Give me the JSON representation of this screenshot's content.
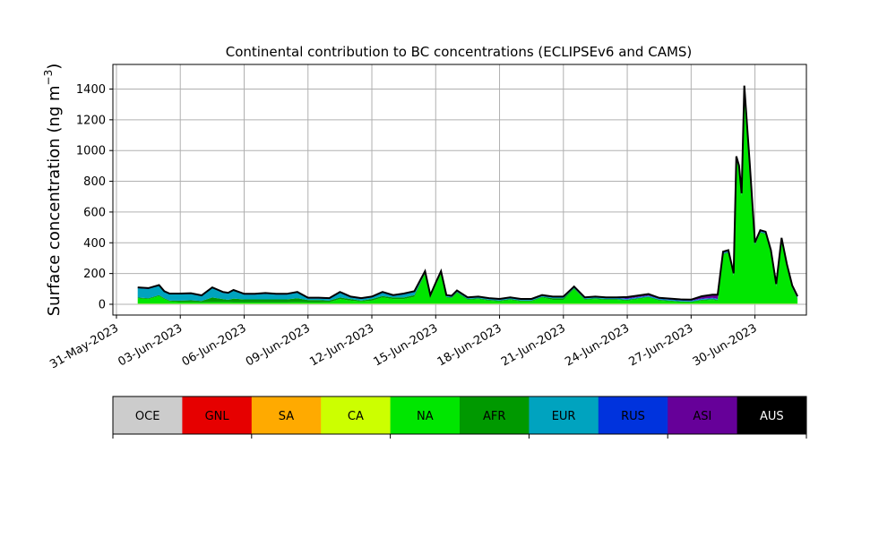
{
  "chart_data": {
    "type": "area",
    "title": "Continental contribution to BC concentrations (ECLIPSEv6 and CAMS)",
    "ylabel": "Surface concentration (ng m",
    "ylabel_sup": "−3",
    "ylabel_close": ")",
    "xlabel": "",
    "xlim": [
      "2023-05-30T20:00",
      "2023-07-02T10:00"
    ],
    "ylim": [
      -70,
      1560
    ],
    "yticks": [
      0,
      200,
      400,
      600,
      800,
      1000,
      1200,
      1400
    ],
    "xticks": [
      "2023-05-31",
      "2023-06-03",
      "2023-06-06",
      "2023-06-09",
      "2023-06-12",
      "2023-06-15",
      "2023-06-18",
      "2023-06-21",
      "2023-06-24",
      "2023-06-27",
      "2023-06-30"
    ],
    "xtick_labels": [
      "31-May-2023",
      "03-Jun-2023",
      "06-Jun-2023",
      "09-Jun-2023",
      "12-Jun-2023",
      "15-Jun-2023",
      "18-Jun-2023",
      "21-Jun-2023",
      "24-Jun-2023",
      "27-Jun-2023",
      "30-Jun-2023"
    ],
    "grid": true,
    "stacked": true,
    "x": [
      "2023-06-01T00:00",
      "2023-06-01T12:00",
      "2023-06-02T00:00",
      "2023-06-02T06:00",
      "2023-06-02T12:00",
      "2023-06-03T00:00",
      "2023-06-03T12:00",
      "2023-06-04T00:00",
      "2023-06-04T12:00",
      "2023-06-05T00:00",
      "2023-06-05T06:00",
      "2023-06-05T12:00",
      "2023-06-06T00:00",
      "2023-06-06T12:00",
      "2023-06-07T00:00",
      "2023-06-07T12:00",
      "2023-06-08T00:00",
      "2023-06-08T12:00",
      "2023-06-09T00:00",
      "2023-06-09T12:00",
      "2023-06-10T00:00",
      "2023-06-10T12:00",
      "2023-06-11T00:00",
      "2023-06-11T12:00",
      "2023-06-12T00:00",
      "2023-06-12T12:00",
      "2023-06-13T00:00",
      "2023-06-13T12:00",
      "2023-06-14T00:00",
      "2023-06-14T12:00",
      "2023-06-14T18:00",
      "2023-06-15T00:00",
      "2023-06-15T06:00",
      "2023-06-15T12:00",
      "2023-06-15T18:00",
      "2023-06-16T00:00",
      "2023-06-16T12:00",
      "2023-06-17T00:00",
      "2023-06-17T12:00",
      "2023-06-18T00:00",
      "2023-06-18T12:00",
      "2023-06-19T00:00",
      "2023-06-19T12:00",
      "2023-06-20T00:00",
      "2023-06-20T12:00",
      "2023-06-21T00:00",
      "2023-06-21T12:00",
      "2023-06-22T00:00",
      "2023-06-22T12:00",
      "2023-06-23T00:00",
      "2023-06-23T12:00",
      "2023-06-24T00:00",
      "2023-06-24T12:00",
      "2023-06-25T00:00",
      "2023-06-25T12:00",
      "2023-06-26T00:00",
      "2023-06-26T12:00",
      "2023-06-27T00:00",
      "2023-06-27T12:00",
      "2023-06-28T00:00",
      "2023-06-28T06:00",
      "2023-06-28T12:00",
      "2023-06-28T18:00",
      "2023-06-29T00:00",
      "2023-06-29T03:00",
      "2023-06-29T06:00",
      "2023-06-29T09:00",
      "2023-06-29T12:00",
      "2023-06-29T18:00",
      "2023-06-30T00:00",
      "2023-06-30T06:00",
      "2023-06-30T12:00",
      "2023-06-30T18:00",
      "2023-07-01T00:00",
      "2023-07-01T06:00",
      "2023-07-01T12:00",
      "2023-07-01T18:00",
      "2023-07-02T00:00"
    ],
    "series": [
      {
        "name": "OCE",
        "color": "#cccccc",
        "values": [
          2,
          2,
          2,
          2,
          2,
          2,
          2,
          2,
          2,
          2,
          2,
          2,
          2,
          2,
          2,
          2,
          2,
          2,
          2,
          2,
          2,
          2,
          2,
          2,
          2,
          2,
          2,
          2,
          2,
          2,
          2,
          2,
          2,
          2,
          2,
          2,
          2,
          2,
          2,
          2,
          2,
          2,
          2,
          2,
          2,
          2,
          2,
          2,
          2,
          2,
          2,
          2,
          2,
          2,
          2,
          2,
          2,
          2,
          2,
          2,
          2,
          2,
          2,
          2,
          2,
          2,
          2,
          2,
          2,
          2,
          2,
          2,
          2,
          2,
          2,
          2,
          2,
          2
        ]
      },
      {
        "name": "GNL",
        "color": "#e60000",
        "values": [
          0,
          0,
          0,
          0,
          0,
          0,
          0,
          0,
          0,
          0,
          0,
          0,
          0,
          0,
          0,
          0,
          0,
          0,
          0,
          0,
          0,
          0,
          0,
          0,
          0,
          0,
          0,
          0,
          0,
          0,
          0,
          0,
          0,
          0,
          0,
          0,
          0,
          0,
          0,
          0,
          0,
          0,
          0,
          0,
          0,
          0,
          0,
          0,
          0,
          0,
          0,
          0,
          0,
          0,
          0,
          0,
          0,
          0,
          0,
          0,
          0,
          0,
          0,
          0,
          0,
          0,
          0,
          0,
          0,
          0,
          0,
          0,
          0,
          0,
          0,
          0,
          0,
          0
        ]
      },
      {
        "name": "SA",
        "color": "#ffaa00",
        "values": [
          0,
          0,
          0,
          0,
          0,
          0,
          0,
          0,
          0,
          0,
          0,
          0,
          0,
          0,
          0,
          0,
          0,
          0,
          0,
          0,
          0,
          0,
          0,
          0,
          0,
          0,
          0,
          0,
          0,
          0,
          0,
          0,
          0,
          0,
          0,
          0,
          0,
          0,
          0,
          0,
          0,
          0,
          0,
          0,
          0,
          0,
          0,
          0,
          0,
          0,
          0,
          0,
          0,
          0,
          0,
          0,
          0,
          0,
          0,
          0,
          0,
          0,
          0,
          0,
          0,
          0,
          0,
          0,
          0,
          0,
          0,
          0,
          0,
          0,
          0,
          0,
          0,
          0
        ]
      },
      {
        "name": "CA",
        "color": "#ccff00",
        "values": [
          2,
          2,
          2,
          2,
          2,
          2,
          2,
          2,
          2,
          2,
          2,
          2,
          2,
          2,
          2,
          2,
          2,
          2,
          2,
          2,
          2,
          2,
          2,
          2,
          2,
          2,
          2,
          2,
          2,
          2,
          2,
          2,
          2,
          2,
          2,
          2,
          2,
          2,
          2,
          2,
          2,
          2,
          2,
          2,
          2,
          2,
          2,
          2,
          2,
          2,
          2,
          2,
          2,
          2,
          2,
          2,
          2,
          2,
          2,
          2,
          2,
          2,
          2,
          2,
          2,
          2,
          2,
          2,
          2,
          2,
          2,
          2,
          2,
          2,
          2,
          2,
          2,
          2
        ]
      },
      {
        "name": "NA",
        "color": "#00e600",
        "values": [
          35,
          30,
          50,
          30,
          15,
          10,
          10,
          8,
          10,
          10,
          10,
          8,
          8,
          8,
          8,
          8,
          8,
          10,
          8,
          8,
          10,
          30,
          20,
          15,
          20,
          40,
          30,
          30,
          45,
          195,
          40,
          120,
          195,
          40,
          35,
          70,
          25,
          30,
          20,
          15,
          25,
          15,
          15,
          40,
          25,
          25,
          95,
          25,
          30,
          25,
          25,
          20,
          30,
          40,
          20,
          15,
          10,
          8,
          20,
          25,
          20,
          320,
          330,
          180,
          940,
          880,
          700,
          1400,
          900,
          380,
          460,
          450,
          330,
          110,
          410,
          240,
          100,
          30
        ]
      },
      {
        "name": "AFR",
        "color": "#009900",
        "values": [
          5,
          5,
          5,
          5,
          5,
          10,
          12,
          10,
          30,
          20,
          15,
          25,
          20,
          20,
          20,
          20,
          20,
          25,
          15,
          15,
          10,
          10,
          10,
          5,
          10,
          10,
          10,
          10,
          10,
          5,
          5,
          5,
          5,
          5,
          5,
          5,
          5,
          5,
          5,
          5,
          5,
          5,
          5,
          5,
          10,
          10,
          5,
          5,
          5,
          5,
          5,
          5,
          5,
          5,
          5,
          5,
          5,
          5,
          5,
          5,
          5,
          5,
          5,
          5,
          5,
          5,
          5,
          5,
          5,
          5,
          5,
          5,
          5,
          5,
          5,
          5,
          5,
          5
        ]
      },
      {
        "name": "EUR",
        "color": "#00a3bf",
        "values": [
          60,
          60,
          60,
          40,
          40,
          40,
          40,
          30,
          60,
          40,
          40,
          50,
          30,
          30,
          35,
          30,
          30,
          35,
          10,
          10,
          10,
          30,
          10,
          10,
          10,
          20,
          10,
          20,
          20,
          5,
          5,
          5,
          5,
          5,
          5,
          5,
          5,
          5,
          5,
          5,
          5,
          5,
          5,
          5,
          5,
          5,
          5,
          5,
          5,
          5,
          5,
          5,
          5,
          5,
          5,
          5,
          5,
          5,
          5,
          5,
          5,
          5,
          5,
          5,
          5,
          5,
          5,
          5,
          5,
          5,
          5,
          5,
          5,
          5,
          5,
          5,
          5,
          5
        ]
      },
      {
        "name": "RUS",
        "color": "#0033dd",
        "values": [
          3,
          3,
          3,
          3,
          3,
          3,
          3,
          3,
          3,
          3,
          3,
          3,
          3,
          3,
          3,
          3,
          3,
          3,
          3,
          3,
          3,
          3,
          3,
          3,
          3,
          3,
          3,
          3,
          3,
          3,
          3,
          3,
          3,
          3,
          3,
          3,
          3,
          3,
          3,
          3,
          3,
          3,
          3,
          3,
          3,
          3,
          3,
          3,
          3,
          3,
          3,
          3,
          3,
          3,
          3,
          3,
          3,
          3,
          3,
          3,
          3,
          3,
          3,
          3,
          3,
          3,
          3,
          3,
          3,
          3,
          3,
          3,
          3,
          3,
          3,
          3,
          3,
          3
        ]
      },
      {
        "name": "ASI",
        "color": "#660099",
        "values": [
          3,
          3,
          3,
          3,
          3,
          3,
          3,
          3,
          3,
          3,
          3,
          3,
          3,
          3,
          3,
          3,
          3,
          3,
          3,
          3,
          3,
          3,
          3,
          3,
          3,
          3,
          3,
          3,
          3,
          3,
          3,
          3,
          3,
          3,
          3,
          3,
          3,
          3,
          3,
          3,
          3,
          3,
          3,
          3,
          3,
          3,
          3,
          3,
          3,
          3,
          3,
          10,
          10,
          10,
          5,
          5,
          5,
          5,
          15,
          20,
          25,
          5,
          5,
          5,
          5,
          5,
          5,
          5,
          5,
          5,
          5,
          5,
          5,
          5,
          5,
          5,
          5,
          5
        ]
      },
      {
        "name": "AUS",
        "color": "#000000",
        "values": [
          0,
          0,
          0,
          0,
          0,
          0,
          0,
          0,
          0,
          0,
          0,
          0,
          0,
          0,
          0,
          0,
          0,
          0,
          0,
          0,
          0,
          0,
          0,
          0,
          0,
          0,
          0,
          0,
          0,
          0,
          0,
          0,
          0,
          0,
          0,
          0,
          0,
          0,
          0,
          0,
          0,
          0,
          0,
          0,
          0,
          0,
          0,
          0,
          0,
          0,
          0,
          0,
          0,
          0,
          0,
          0,
          0,
          0,
          0,
          0,
          0,
          0,
          0,
          0,
          0,
          0,
          0,
          0,
          0,
          0,
          0,
          0,
          0,
          0,
          0,
          0,
          0,
          0
        ]
      }
    ],
    "legend": {
      "placement": "bottom colorbar",
      "entries": [
        {
          "label": "OCE",
          "color": "#cccccc",
          "text_color": "#000000"
        },
        {
          "label": "GNL",
          "color": "#e60000",
          "text_color": "#000000"
        },
        {
          "label": "SA",
          "color": "#ffaa00",
          "text_color": "#000000"
        },
        {
          "label": "CA",
          "color": "#ccff00",
          "text_color": "#000000"
        },
        {
          "label": "NA",
          "color": "#00e600",
          "text_color": "#000000"
        },
        {
          "label": "AFR",
          "color": "#009900",
          "text_color": "#000000"
        },
        {
          "label": "EUR",
          "color": "#00a3bf",
          "text_color": "#000000"
        },
        {
          "label": "RUS",
          "color": "#0033dd",
          "text_color": "#000000"
        },
        {
          "label": "ASI",
          "color": "#660099",
          "text_color": "#000000"
        },
        {
          "label": "AUS",
          "color": "#000000",
          "text_color": "#ffffff"
        }
      ]
    }
  }
}
